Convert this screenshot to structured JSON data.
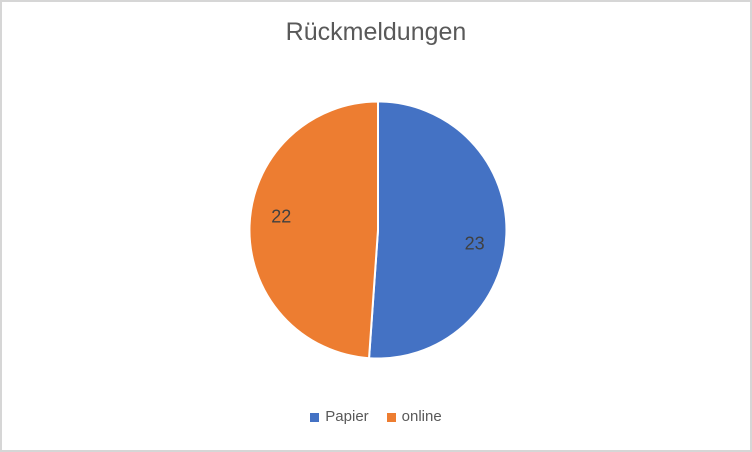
{
  "frame": {
    "background": "#FFFFFF",
    "border_color": "#D6D6D6"
  },
  "chart_data": {
    "type": "pie",
    "title": "Rückmeldungen",
    "categories": [
      "Papier",
      "online"
    ],
    "values": [
      23,
      22
    ],
    "colors": [
      "#4472C4",
      "#ED7D31"
    ],
    "data_labels": [
      "23",
      "22"
    ],
    "slice_border_color": "#FFFFFF",
    "start_angle_deg": 0,
    "direction": "clockwise",
    "title_color": "#595959",
    "data_label_color": "#404040",
    "legend": {
      "position": "bottom",
      "text_color": "#595959",
      "entries": [
        {
          "label": "Papier",
          "color": "#4472C4"
        },
        {
          "label": "online",
          "color": "#ED7D31"
        }
      ]
    }
  }
}
